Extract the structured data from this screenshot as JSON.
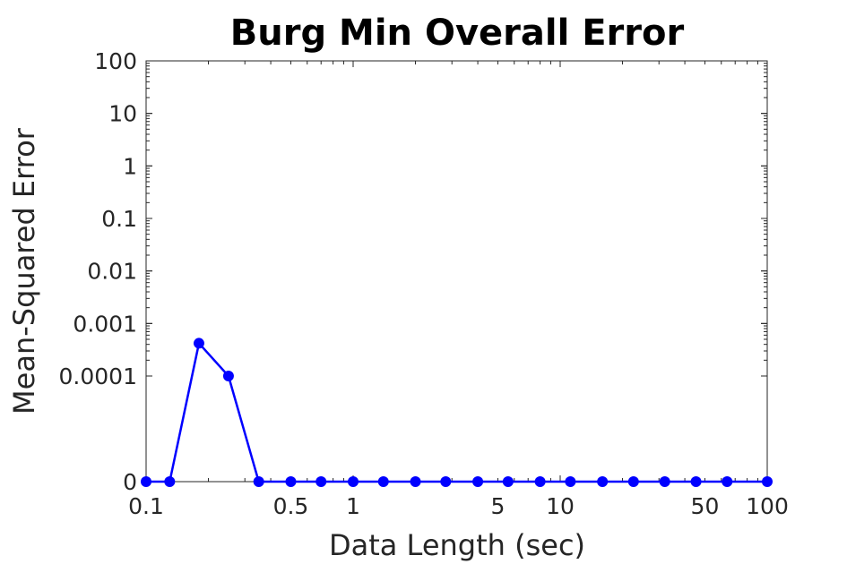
{
  "chart_data": {
    "type": "line",
    "title": "Burg Min Overall Error",
    "xlabel": "Data Length (sec)",
    "ylabel": "Mean-Squared Error",
    "x_scale": "log",
    "y_scale": "log-with-zero-break",
    "xlim": [
      0.1,
      100
    ],
    "ylim": [
      "0",
      100
    ],
    "x_ticks": [
      {
        "value": 0.1,
        "label": "0.1"
      },
      {
        "value": 0.5,
        "label": "0.5"
      },
      {
        "value": 1,
        "label": "1"
      },
      {
        "value": 5,
        "label": "5"
      },
      {
        "value": 10,
        "label": "10"
      },
      {
        "value": 50,
        "label": "50"
      },
      {
        "value": 100,
        "label": "100"
      }
    ],
    "y_ticks": [
      {
        "value": 0,
        "label": "0"
      },
      {
        "value": 0.0001,
        "label": "0.0001"
      },
      {
        "value": 0.001,
        "label": "0.001"
      },
      {
        "value": 0.01,
        "label": "0.01"
      },
      {
        "value": 0.1,
        "label": "0.1"
      },
      {
        "value": 1,
        "label": "1"
      },
      {
        "value": 10,
        "label": "10"
      },
      {
        "value": 100,
        "label": "100"
      }
    ],
    "grid": false,
    "series": [
      {
        "name": "Burg Min Overall Error",
        "color": "#0000ff",
        "x": [
          0.1,
          0.13,
          0.18,
          0.25,
          0.35,
          0.5,
          0.7,
          1.0,
          1.4,
          2.0,
          2.8,
          4.0,
          5.6,
          8.0,
          11.2,
          16.0,
          22.6,
          32.0,
          45.3,
          64.0,
          100.0
        ],
        "y": [
          0,
          0,
          0.00042,
          0.0001,
          0,
          0,
          0,
          0,
          0,
          0,
          0,
          0,
          0,
          0,
          0,
          0,
          0,
          0,
          0,
          0,
          0
        ]
      }
    ]
  }
}
